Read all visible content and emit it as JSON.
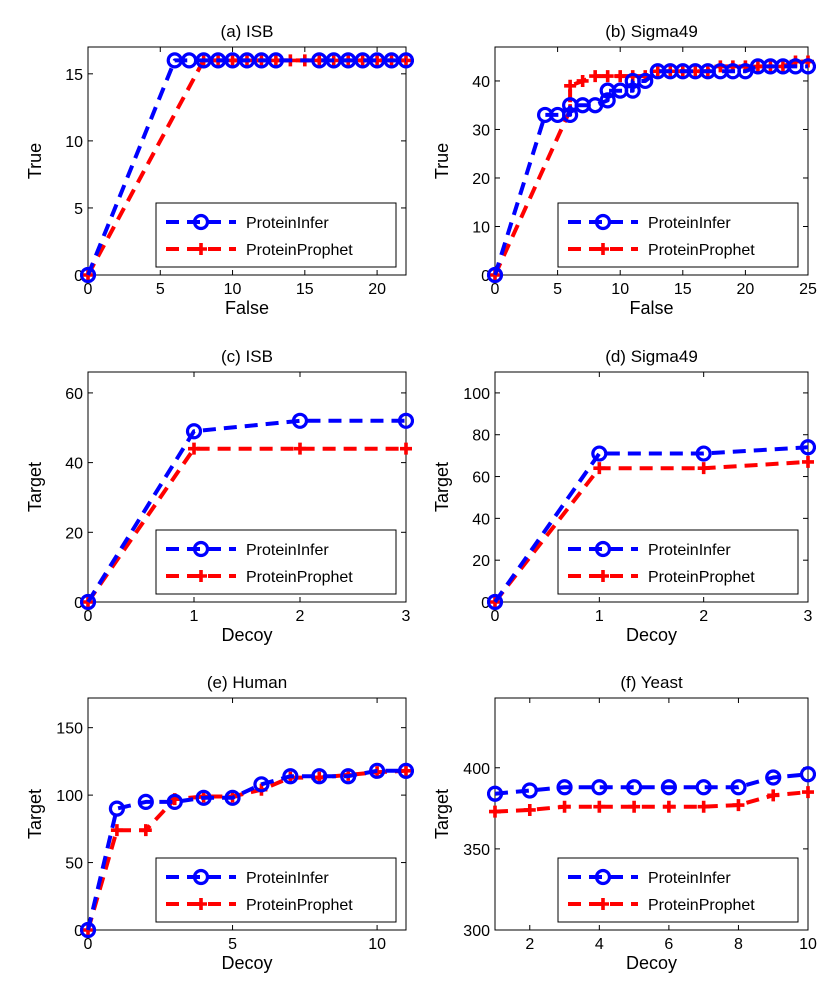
{
  "colors": {
    "protein_infer": "#0000ff",
    "protein_prophet": "#ff0000",
    "axis": "#000000"
  },
  "chart_data": [
    {
      "id": "a",
      "type": "line",
      "title": "(a) ISB",
      "xlabel": "False",
      "ylabel": "True",
      "xlim": [
        0,
        22
      ],
      "ylim": [
        0,
        17
      ],
      "xticks": [
        0,
        5,
        10,
        15,
        20
      ],
      "yticks": [
        0,
        5,
        10,
        15
      ],
      "legend_position": "bottom-right",
      "series": [
        {
          "name": "ProteinInfer",
          "marker": "circle",
          "points": [
            [
              0,
              0
            ],
            [
              6,
              16
            ],
            [
              7,
              16
            ],
            [
              8,
              16
            ],
            [
              9,
              16
            ],
            [
              10,
              16
            ],
            [
              11,
              16
            ],
            [
              12,
              16
            ],
            [
              13,
              16
            ],
            [
              16,
              16
            ],
            [
              17,
              16
            ],
            [
              18,
              16
            ],
            [
              19,
              16
            ],
            [
              20,
              16
            ],
            [
              21,
              16
            ],
            [
              22,
              16
            ]
          ]
        },
        {
          "name": "ProteinProphet",
          "marker": "plus",
          "points": [
            [
              0,
              0
            ],
            [
              8,
              16
            ],
            [
              9,
              16
            ],
            [
              10,
              16
            ],
            [
              11,
              16
            ],
            [
              12,
              16
            ],
            [
              13,
              16
            ],
            [
              14,
              16
            ],
            [
              15,
              16
            ],
            [
              16,
              16
            ],
            [
              17,
              16
            ],
            [
              18,
              16
            ],
            [
              19,
              16
            ],
            [
              20,
              16
            ],
            [
              21,
              16
            ],
            [
              22,
              16
            ]
          ]
        }
      ]
    },
    {
      "id": "b",
      "type": "line",
      "title": "(b) Sigma49",
      "xlabel": "False",
      "ylabel": "True",
      "xlim": [
        0,
        25
      ],
      "ylim": [
        0,
        47
      ],
      "xticks": [
        0,
        5,
        10,
        15,
        20,
        25
      ],
      "yticks": [
        0,
        10,
        20,
        30,
        40
      ],
      "legend_position": "bottom-right",
      "series": [
        {
          "name": "ProteinInfer",
          "marker": "circle",
          "points": [
            [
              0,
              0
            ],
            [
              4,
              33
            ],
            [
              5,
              33
            ],
            [
              6,
              33
            ],
            [
              6,
              35
            ],
            [
              7,
              35
            ],
            [
              8,
              35
            ],
            [
              9,
              36
            ],
            [
              9,
              38
            ],
            [
              10,
              38
            ],
            [
              11,
              38
            ],
            [
              11,
              40
            ],
            [
              12,
              40
            ],
            [
              13,
              42
            ],
            [
              14,
              42
            ],
            [
              15,
              42
            ],
            [
              16,
              42
            ],
            [
              17,
              42
            ],
            [
              18,
              42
            ],
            [
              19,
              42
            ],
            [
              20,
              42
            ],
            [
              21,
              43
            ],
            [
              22,
              43
            ],
            [
              23,
              43
            ],
            [
              24,
              43
            ],
            [
              25,
              43
            ]
          ]
        },
        {
          "name": "ProteinProphet",
          "marker": "plus",
          "points": [
            [
              0,
              0
            ],
            [
              6,
              34
            ],
            [
              6,
              39
            ],
            [
              7,
              40
            ],
            [
              8,
              41
            ],
            [
              9,
              41
            ],
            [
              10,
              41
            ],
            [
              11,
              41
            ],
            [
              12,
              41
            ],
            [
              13,
              42
            ],
            [
              14,
              42
            ],
            [
              15,
              42
            ],
            [
              16,
              42
            ],
            [
              17,
              42
            ],
            [
              18,
              43
            ],
            [
              19,
              43
            ],
            [
              20,
              43
            ],
            [
              21,
              43
            ],
            [
              22,
              43
            ],
            [
              23,
              43
            ],
            [
              24,
              44
            ],
            [
              25,
              44
            ]
          ]
        }
      ]
    },
    {
      "id": "c",
      "type": "line",
      "title": "(c) ISB",
      "xlabel": "Decoy",
      "ylabel": "Target",
      "xlim": [
        0,
        3
      ],
      "ylim": [
        0,
        66
      ],
      "xticks": [
        0,
        1,
        2,
        3
      ],
      "yticks": [
        0,
        20,
        40,
        60
      ],
      "legend_position": "bottom-right",
      "series": [
        {
          "name": "ProteinInfer",
          "marker": "circle",
          "points": [
            [
              0,
              0
            ],
            [
              1,
              49
            ],
            [
              2,
              52
            ],
            [
              3,
              52
            ]
          ]
        },
        {
          "name": "ProteinProphet",
          "marker": "plus",
          "points": [
            [
              0,
              0
            ],
            [
              1,
              44
            ],
            [
              2,
              44
            ],
            [
              3,
              44
            ]
          ]
        }
      ]
    },
    {
      "id": "d",
      "type": "line",
      "title": "(d) Sigma49",
      "xlabel": "Decoy",
      "ylabel": "Target",
      "xlim": [
        0,
        3
      ],
      "ylim": [
        0,
        110
      ],
      "xticks": [
        0,
        1,
        2,
        3
      ],
      "yticks": [
        0,
        20,
        40,
        60,
        80,
        100
      ],
      "legend_position": "bottom-right",
      "series": [
        {
          "name": "ProteinInfer",
          "marker": "circle",
          "points": [
            [
              0,
              0
            ],
            [
              1,
              71
            ],
            [
              2,
              71
            ],
            [
              3,
              74
            ]
          ]
        },
        {
          "name": "ProteinProphet",
          "marker": "plus",
          "points": [
            [
              0,
              0
            ],
            [
              1,
              64
            ],
            [
              2,
              64
            ],
            [
              3,
              67
            ]
          ]
        }
      ]
    },
    {
      "id": "e",
      "type": "line",
      "title": "(e) Human",
      "xlabel": "Decoy",
      "ylabel": "Target",
      "xlim": [
        0,
        11
      ],
      "ylim": [
        0,
        172
      ],
      "xticks": [
        0,
        5,
        10
      ],
      "yticks": [
        0,
        50,
        100,
        150
      ],
      "legend_position": "bottom-right",
      "series": [
        {
          "name": "ProteinInfer",
          "marker": "circle",
          "points": [
            [
              0,
              0
            ],
            [
              1,
              90
            ],
            [
              2,
              95
            ],
            [
              3,
              95
            ],
            [
              4,
              98
            ],
            [
              5,
              98
            ],
            [
              6,
              108
            ],
            [
              7,
              114
            ],
            [
              8,
              114
            ],
            [
              9,
              114
            ],
            [
              10,
              118
            ],
            [
              11,
              118
            ]
          ]
        },
        {
          "name": "ProteinProphet",
          "marker": "plus",
          "points": [
            [
              0,
              0
            ],
            [
              1,
              74
            ],
            [
              2,
              74
            ],
            [
              3,
              97
            ],
            [
              4,
              99
            ],
            [
              5,
              99
            ],
            [
              6,
              104
            ],
            [
              7,
              113
            ],
            [
              8,
              113
            ],
            [
              9,
              115
            ],
            [
              10,
              117
            ],
            [
              11,
              118
            ]
          ]
        }
      ]
    },
    {
      "id": "f",
      "type": "line",
      "title": "(f) Yeast",
      "xlabel": "Decoy",
      "ylabel": "Target",
      "xlim": [
        1,
        10
      ],
      "ylim": [
        300,
        443
      ],
      "xticks": [
        2,
        4,
        6,
        8,
        10
      ],
      "yticks": [
        300,
        350,
        400
      ],
      "legend_position": "bottom-right",
      "series": [
        {
          "name": "ProteinInfer",
          "marker": "circle",
          "points": [
            [
              1,
              384
            ],
            [
              2,
              386
            ],
            [
              3,
              388
            ],
            [
              4,
              388
            ],
            [
              5,
              388
            ],
            [
              6,
              388
            ],
            [
              7,
              388
            ],
            [
              8,
              388
            ],
            [
              9,
              394
            ],
            [
              10,
              396
            ]
          ]
        },
        {
          "name": "ProteinProphet",
          "marker": "plus",
          "points": [
            [
              1,
              373
            ],
            [
              2,
              374
            ],
            [
              3,
              376
            ],
            [
              4,
              376
            ],
            [
              5,
              376
            ],
            [
              6,
              376
            ],
            [
              7,
              376
            ],
            [
              8,
              377
            ],
            [
              9,
              383
            ],
            [
              10,
              385
            ]
          ]
        }
      ]
    }
  ]
}
